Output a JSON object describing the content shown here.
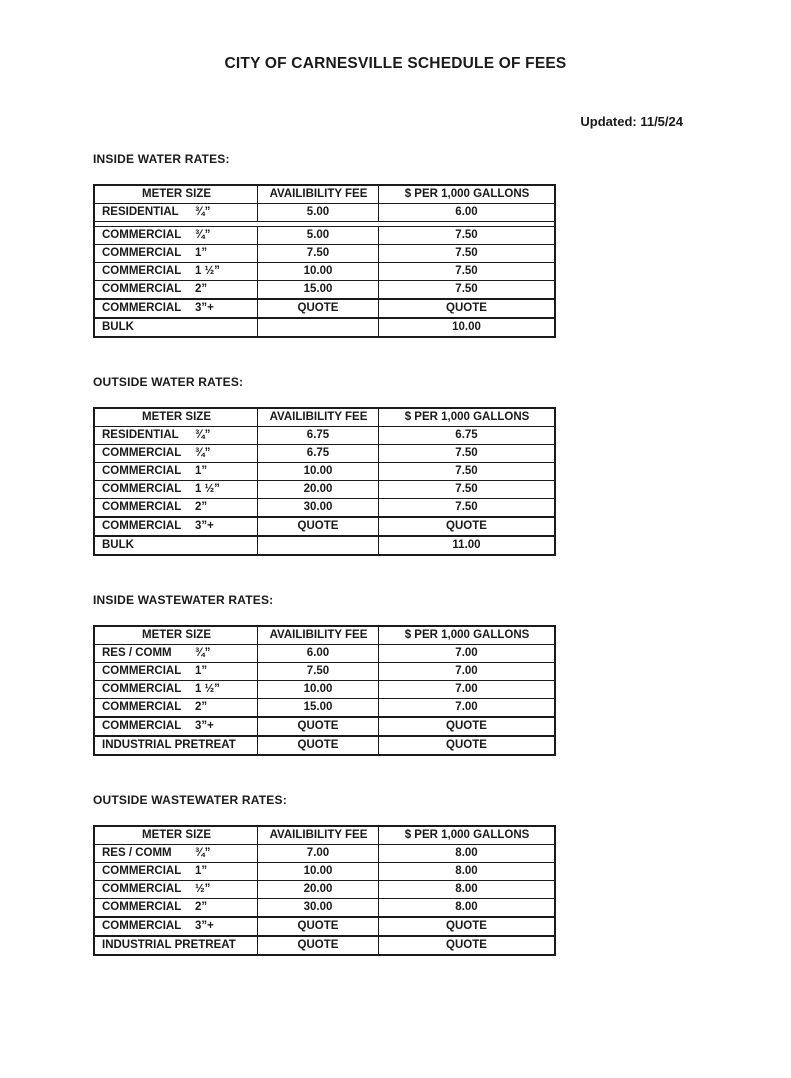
{
  "page": {
    "title": "CITY OF CARNESVILLE SCHEDULE OF FEES",
    "updated_label": "Updated: 11/5/24"
  },
  "sections": [
    {
      "heading": "INSIDE WATER RATES:",
      "columns": [
        "METER SIZE",
        "AVAILIBILITY FEE",
        "$ PER 1,000 GALLONS"
      ],
      "rows": [
        {
          "category": "RESIDENTIAL",
          "size": "¾”",
          "availability_fee": "5.00",
          "per_1000_gallons": "6.00",
          "gap_after": true
        },
        {
          "category": "COMMERCIAL",
          "size": "¾”",
          "availability_fee": "5.00",
          "per_1000_gallons": "7.50"
        },
        {
          "category": "COMMERCIAL",
          "size": "1”",
          "availability_fee": "7.50",
          "per_1000_gallons": "7.50"
        },
        {
          "category": "COMMERCIAL",
          "size": "1 ½”",
          "availability_fee": "10.00",
          "per_1000_gallons": "7.50"
        },
        {
          "category": "COMMERCIAL",
          "size": "2”",
          "availability_fee": "15.00",
          "per_1000_gallons": "7.50"
        },
        {
          "category": "COMMERCIAL",
          "size": "3”+",
          "availability_fee": "QUOTE",
          "per_1000_gallons": "QUOTE",
          "thick_top": true
        },
        {
          "category": "BULK",
          "size": "",
          "availability_fee": "",
          "per_1000_gallons": "10.00",
          "thick_top": true
        }
      ]
    },
    {
      "heading": "OUTSIDE WATER RATES:",
      "columns": [
        "METER SIZE",
        "AVAILIBILITY FEE",
        "$ PER 1,000 GALLONS"
      ],
      "rows": [
        {
          "category": "RESIDENTIAL",
          "size": "¾”",
          "availability_fee": "6.75",
          "per_1000_gallons": "6.75"
        },
        {
          "category": "COMMERCIAL",
          "size": "¾”",
          "availability_fee": "6.75",
          "per_1000_gallons": "7.50"
        },
        {
          "category": "COMMERCIAL",
          "size": "1”",
          "availability_fee": "10.00",
          "per_1000_gallons": "7.50"
        },
        {
          "category": "COMMERCIAL",
          "size": "1 ½”",
          "availability_fee": "20.00",
          "per_1000_gallons": "7.50"
        },
        {
          "category": "COMMERCIAL",
          "size": "2”",
          "availability_fee": "30.00",
          "per_1000_gallons": "7.50"
        },
        {
          "category": "COMMERCIAL",
          "size": "3”+",
          "availability_fee": "QUOTE",
          "per_1000_gallons": "QUOTE",
          "thick_top": true
        },
        {
          "category": "BULK",
          "size": "",
          "availability_fee": "",
          "per_1000_gallons": "11.00",
          "thick_top": true
        }
      ]
    },
    {
      "heading": "INSIDE WASTEWATER RATES:",
      "columns": [
        "METER SIZE",
        "AVAILIBILITY FEE",
        "$ PER 1,000 GALLONS"
      ],
      "rows": [
        {
          "category": "RES / COMM",
          "size": "¾”",
          "availability_fee": "6.00",
          "per_1000_gallons": "7.00"
        },
        {
          "category": "COMMERCIAL",
          "size": "1”",
          "availability_fee": "7.50",
          "per_1000_gallons": "7.00"
        },
        {
          "category": "COMMERCIAL",
          "size": "1 ½”",
          "availability_fee": "10.00",
          "per_1000_gallons": "7.00"
        },
        {
          "category": "COMMERCIAL",
          "size": "2”",
          "availability_fee": "15.00",
          "per_1000_gallons": "7.00"
        },
        {
          "category": "COMMERCIAL",
          "size": "3”+",
          "availability_fee": "QUOTE",
          "per_1000_gallons": "QUOTE",
          "thick_top": true
        },
        {
          "category": "INDUSTRIAL PRETREAT",
          "size": "",
          "availability_fee": "QUOTE",
          "per_1000_gallons": "QUOTE",
          "thick_top": true
        }
      ]
    },
    {
      "heading": "OUTSIDE WASTEWATER RATES:",
      "columns": [
        "METER SIZE",
        "AVAILIBILITY FEE",
        "$ PER 1,000 GALLONS"
      ],
      "rows": [
        {
          "category": "RES / COMM",
          "size": "¾”",
          "availability_fee": "7.00",
          "per_1000_gallons": "8.00"
        },
        {
          "category": "COMMERCIAL",
          "size": "1”",
          "availability_fee": "10.00",
          "per_1000_gallons": "8.00"
        },
        {
          "category": "COMMERCIAL",
          "size": "½”",
          "availability_fee": "20.00",
          "per_1000_gallons": "8.00"
        },
        {
          "category": "COMMERCIAL",
          "size": "2”",
          "availability_fee": "30.00",
          "per_1000_gallons": "8.00"
        },
        {
          "category": "COMMERCIAL",
          "size": "3”+",
          "availability_fee": "QUOTE",
          "per_1000_gallons": "QUOTE",
          "thick_top": true
        },
        {
          "category": "INDUSTRIAL PRETREAT",
          "size": "",
          "availability_fee": "QUOTE",
          "per_1000_gallons": "QUOTE",
          "thick_top": true
        }
      ]
    }
  ]
}
